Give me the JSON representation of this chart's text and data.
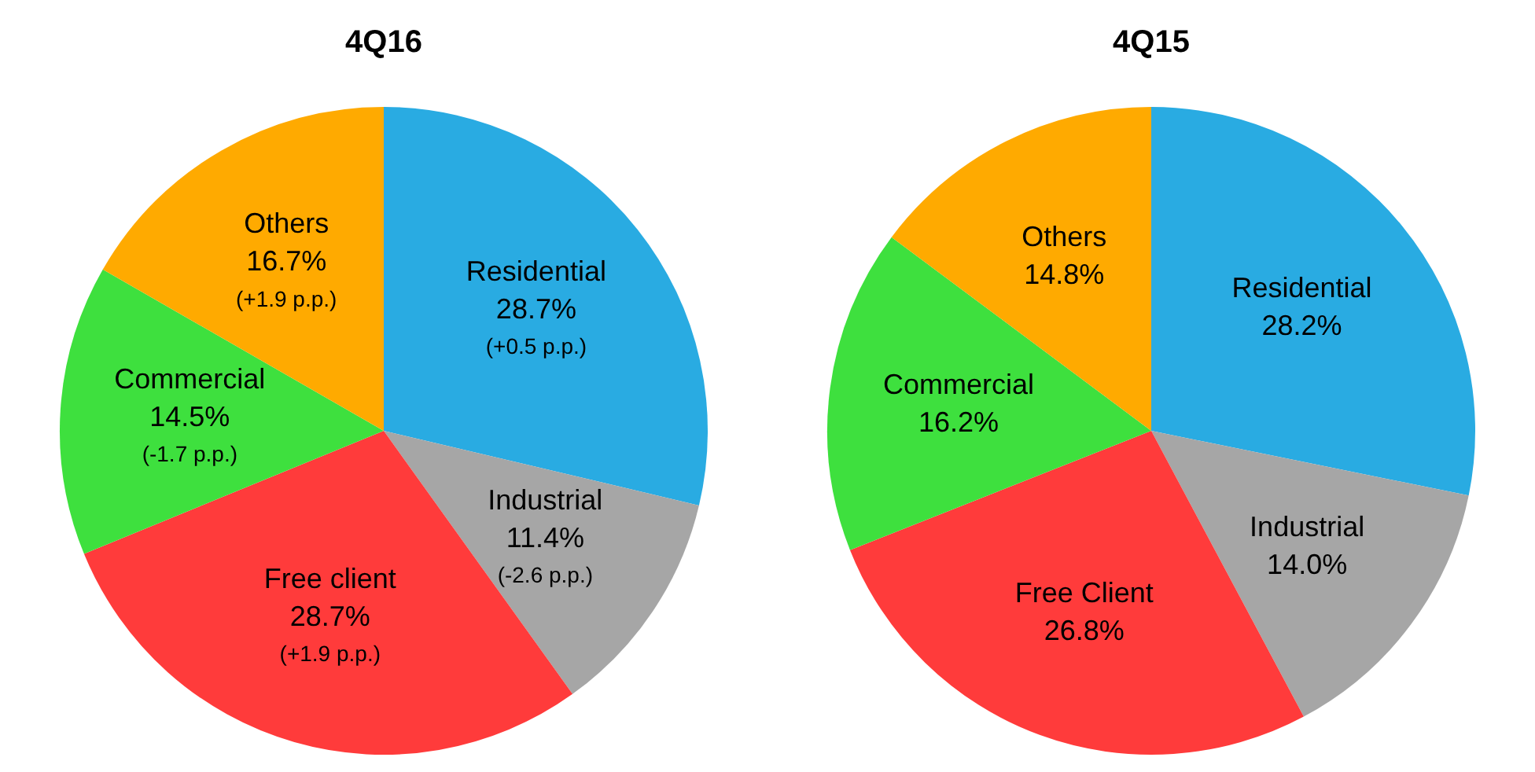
{
  "chart_data": [
    {
      "type": "pie",
      "title": "4Q16",
      "categories": [
        "Residential",
        "Industrial",
        "Free client",
        "Commercial",
        "Others"
      ],
      "values": [
        28.7,
        11.4,
        28.7,
        14.5,
        16.7
      ],
      "value_labels": [
        "28.7%",
        "11.4%",
        "28.7%",
        "14.5%",
        "16.7%"
      ],
      "colors": [
        "#29abe2",
        "#a6a6a6",
        "#ff3b3b",
        "#3ee03e",
        "#ffaa00"
      ],
      "annotations": [
        "(+0.5 p.p.)",
        "(-2.6 p.p.)",
        "(+1.9 p.p.)",
        "(-1.7 p.p.)",
        "(+1.9 p.p.)"
      ],
      "legend": false
    },
    {
      "type": "pie",
      "title": "4Q15",
      "categories": [
        "Residential",
        "Industrial",
        "Free Client",
        "Commercial",
        "Others"
      ],
      "values": [
        28.2,
        14.0,
        26.8,
        16.2,
        14.8
      ],
      "value_labels": [
        "28.2%",
        "14.0%",
        "26.8%",
        "16.2%",
        "14.8%"
      ],
      "colors": [
        "#29abe2",
        "#a6a6a6",
        "#ff3b3b",
        "#3ee03e",
        "#ffaa00"
      ],
      "legend": false
    }
  ]
}
